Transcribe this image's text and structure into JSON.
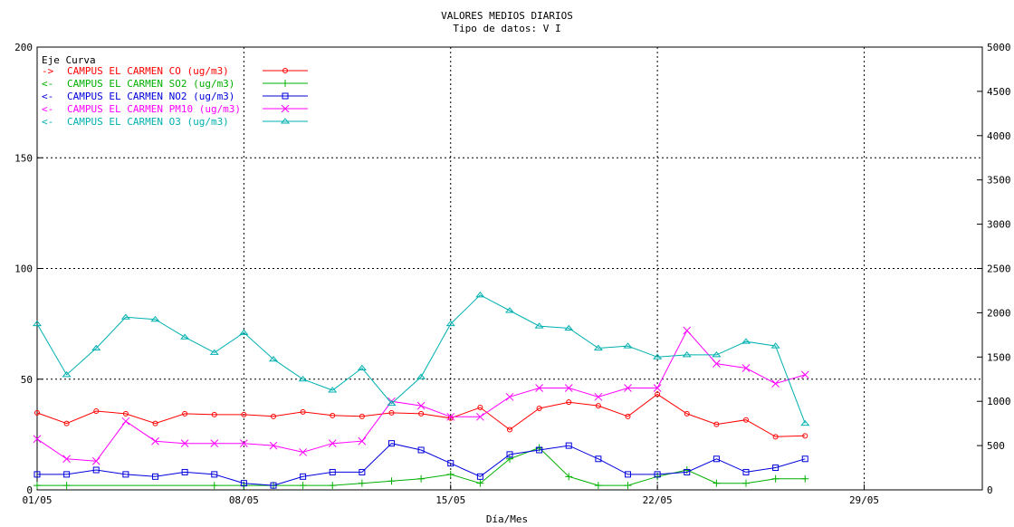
{
  "chart_data": {
    "type": "line",
    "title": "VALORES MEDIOS DIARIOS",
    "subtitle": "Tipo de datos:  V I",
    "xlabel": "Día/Mes",
    "ylabel": "",
    "x_tick_labels": [
      "01/05",
      "08/05",
      "15/05",
      "22/05",
      "29/05"
    ],
    "x_tick_days": [
      1,
      8,
      15,
      22,
      29
    ],
    "xlim": [
      1,
      33
    ],
    "ylim": [
      0,
      200
    ],
    "y_ticks": [
      0,
      50,
      100,
      150,
      200
    ],
    "y2lim": [
      0,
      5000
    ],
    "y2_ticks": [
      0,
      500,
      1000,
      1500,
      2000,
      2500,
      3000,
      3500,
      4000,
      4500,
      5000
    ],
    "grid": true,
    "legend_placement": "top-left",
    "legend_header": "Eje Curva",
    "series": [
      {
        "name": "CAMPUS EL CARMEN CO  (ug/m3)",
        "axis_marker": "->",
        "color": "#ff0000",
        "marker": "circle",
        "axis": "right",
        "x": [
          1,
          2,
          3,
          4,
          5,
          6,
          7,
          8,
          9,
          10,
          11,
          12,
          13,
          14,
          15,
          16,
          17,
          18,
          19,
          20,
          21,
          22,
          23,
          24,
          25,
          26,
          27
        ],
        "values": [
          870,
          750,
          890,
          860,
          750,
          860,
          850,
          850,
          830,
          880,
          840,
          830,
          870,
          860,
          810,
          930,
          680,
          920,
          990,
          950,
          830,
          1080,
          860,
          740,
          790,
          600,
          610
        ]
      },
      {
        "name": "CAMPUS EL CARMEN SO2  (ug/m3)",
        "axis_marker": "<-",
        "color": "#00b000",
        "marker": "plus",
        "axis": "left",
        "x": [
          1,
          2,
          7,
          8,
          9,
          10,
          11,
          12,
          13,
          14,
          15,
          16,
          17,
          18,
          19,
          20,
          21,
          22,
          23,
          24,
          25,
          26,
          27
        ],
        "values": [
          2,
          2,
          2,
          2,
          2,
          2,
          2,
          3,
          4,
          5,
          7,
          3,
          14,
          19,
          6,
          2,
          2,
          6,
          9,
          3,
          3,
          5,
          5
        ]
      },
      {
        "name": "CAMPUS EL CARMEN NO2  (ug/m3)",
        "axis_marker": "<-",
        "color": "#0000dd",
        "marker": "square",
        "axis": "left",
        "x": [
          1,
          2,
          3,
          4,
          5,
          6,
          7,
          8,
          9,
          10,
          11,
          12,
          13,
          14,
          15,
          16,
          17,
          18,
          19,
          20,
          21,
          22,
          23,
          24,
          25,
          26,
          27
        ],
        "values": [
          7,
          7,
          9,
          7,
          6,
          8,
          7,
          3,
          2,
          6,
          8,
          8,
          21,
          18,
          12,
          6,
          16,
          18,
          20,
          14,
          7,
          7,
          8,
          14,
          8,
          10,
          14
        ]
      },
      {
        "name": "CAMPUS EL CARMEN PM10  (ug/m3)",
        "axis_marker": "<-",
        "color": "#ff00ff",
        "marker": "x",
        "axis": "left",
        "x": [
          1,
          2,
          3,
          4,
          5,
          6,
          7,
          8,
          9,
          10,
          11,
          12,
          13,
          14,
          15,
          16,
          17,
          18,
          19,
          20,
          21,
          22,
          23,
          24,
          25,
          26,
          27
        ],
        "values": [
          23,
          14,
          13,
          31,
          22,
          21,
          21,
          21,
          20,
          17,
          21,
          22,
          40,
          38,
          33,
          33,
          42,
          46,
          46,
          42,
          46,
          46,
          72,
          57,
          55,
          48,
          52
        ]
      },
      {
        "name": "CAMPUS EL CARMEN O3  (ug/m3)",
        "axis_marker": "<-",
        "color": "#00b0b0",
        "marker": "triangle",
        "axis": "left",
        "x": [
          1,
          2,
          3,
          4,
          5,
          6,
          7,
          8,
          9,
          10,
          11,
          12,
          13,
          14,
          15,
          16,
          17,
          18,
          19,
          20,
          21,
          22,
          23,
          24,
          25,
          26,
          27
        ],
        "values": [
          75,
          52,
          64,
          78,
          77,
          69,
          62,
          71,
          59,
          50,
          45,
          55,
          39,
          51,
          75,
          88,
          81,
          74,
          73,
          64,
          65,
          60,
          61,
          61,
          67,
          65,
          30
        ]
      }
    ]
  }
}
